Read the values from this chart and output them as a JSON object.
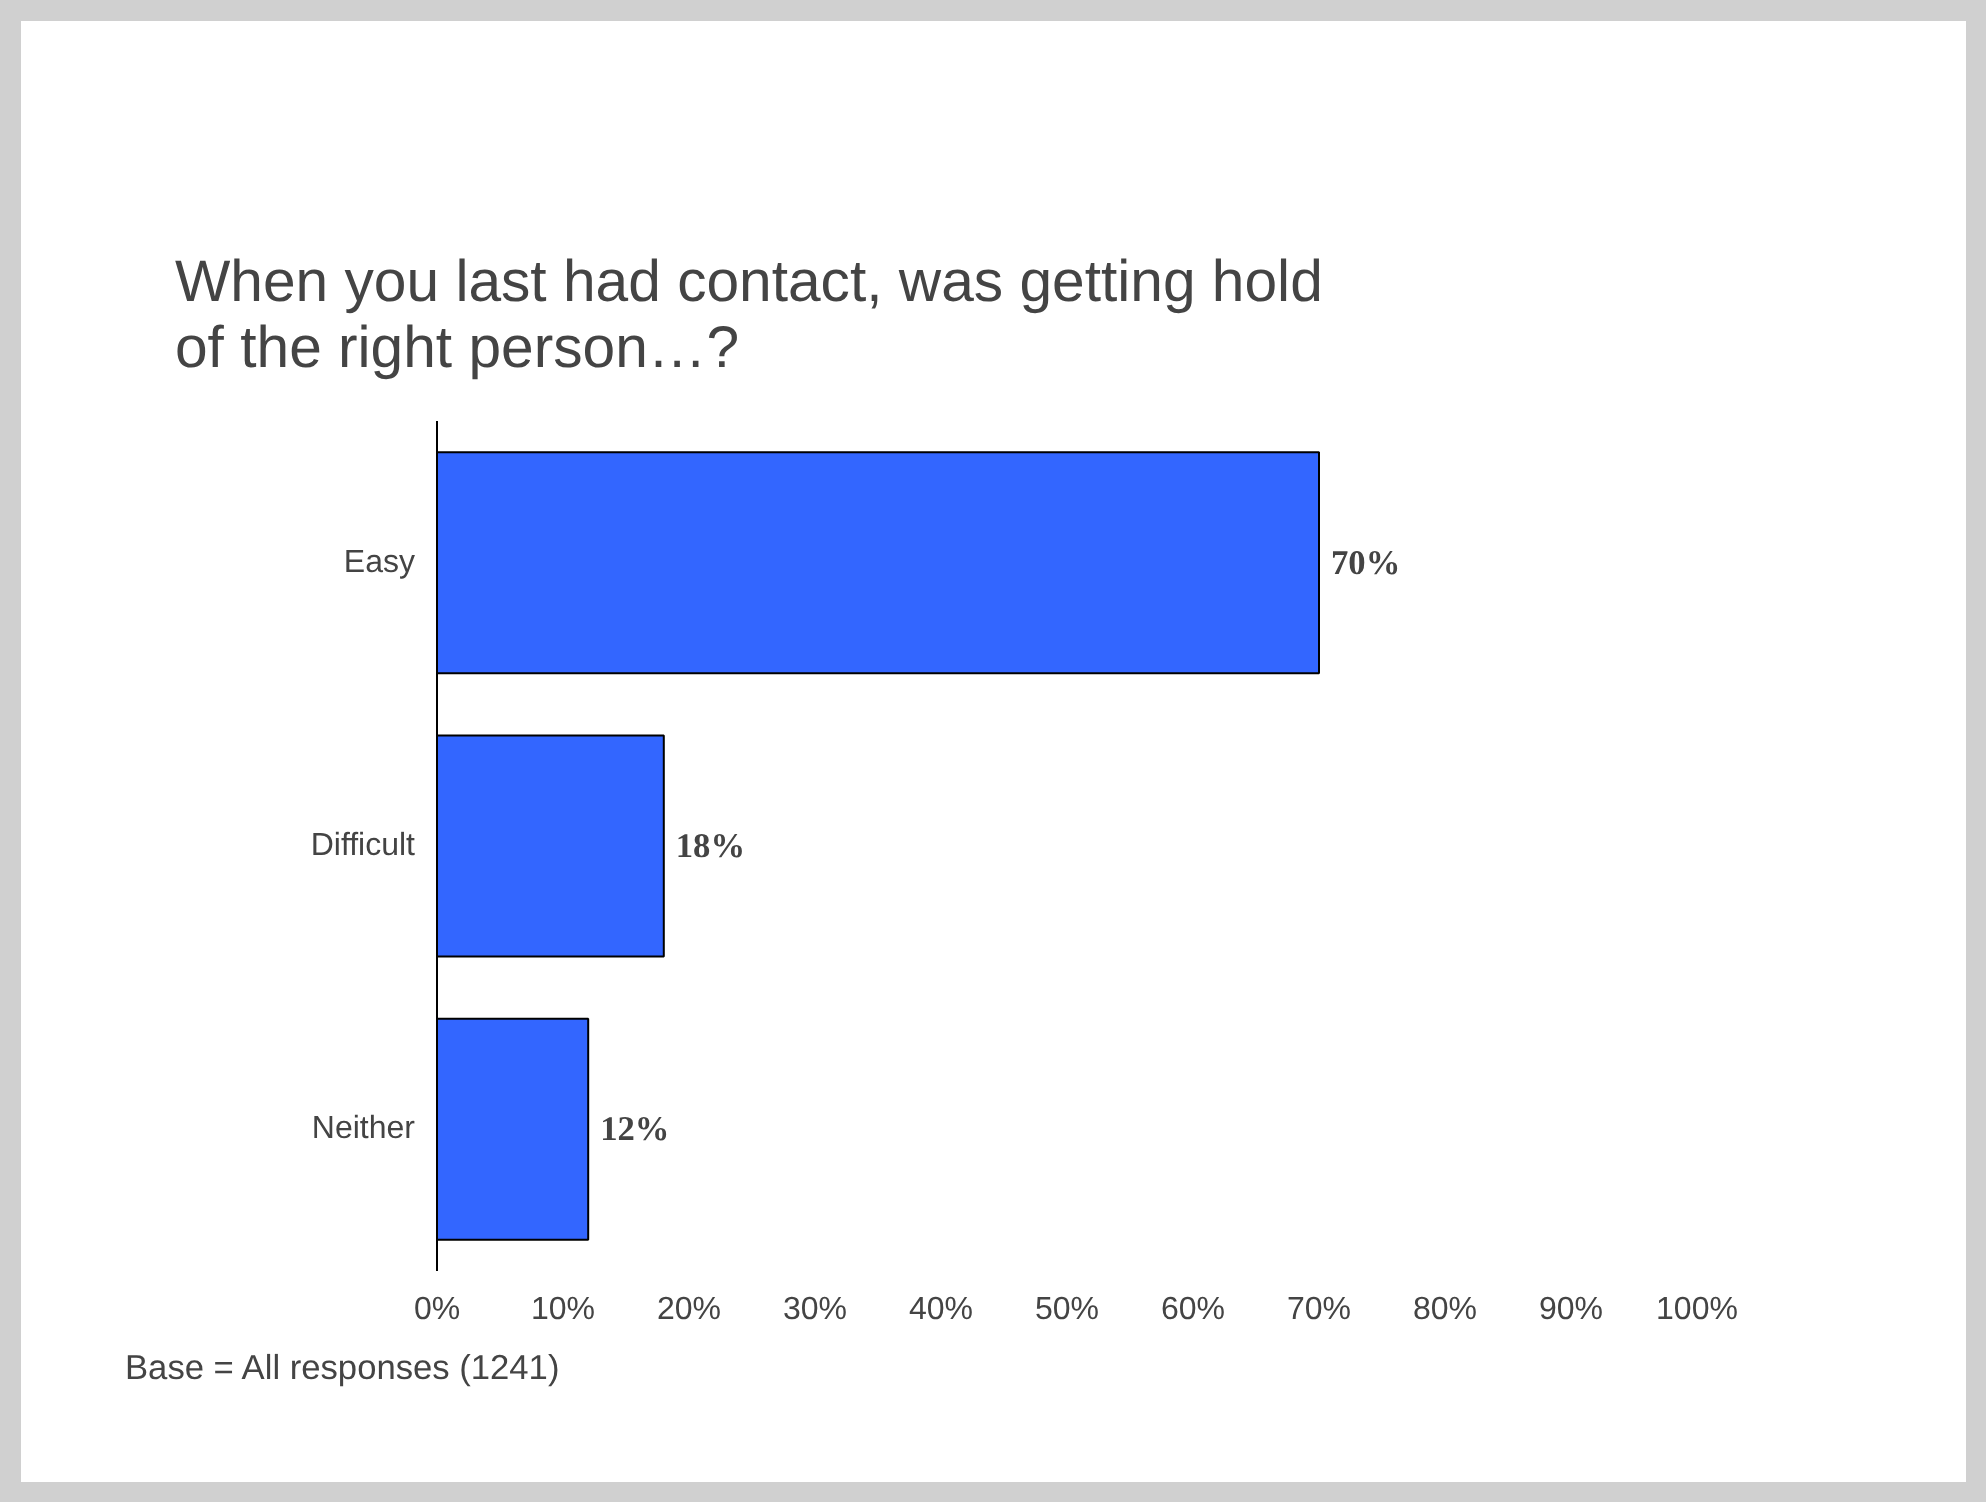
{
  "chart_data": {
    "type": "bar",
    "orientation": "horizontal",
    "title": "When you last had contact, was getting hold of the right person…?",
    "categories": [
      "Easy",
      "Difficult",
      "Neither"
    ],
    "values": [
      70,
      18,
      12
    ],
    "value_labels": [
      "70%",
      "18%",
      "12%"
    ],
    "color": "#3366ff",
    "xlim": [
      0,
      100
    ],
    "xticks": [
      {
        "value": 0,
        "label": "0%"
      },
      {
        "value": 10,
        "label": "10%"
      },
      {
        "value": 20,
        "label": "20%"
      },
      {
        "value": 30,
        "label": "30%"
      },
      {
        "value": 40,
        "label": "40%"
      },
      {
        "value": 50,
        "label": "50%"
      },
      {
        "value": 60,
        "label": "60%"
      },
      {
        "value": 70,
        "label": "70%"
      },
      {
        "value": 80,
        "label": "80%"
      },
      {
        "value": 90,
        "label": "90%"
      },
      {
        "value": 100,
        "label": "100%"
      }
    ],
    "grid": false,
    "annotations": [
      "Base = All responses (1241)"
    ]
  }
}
